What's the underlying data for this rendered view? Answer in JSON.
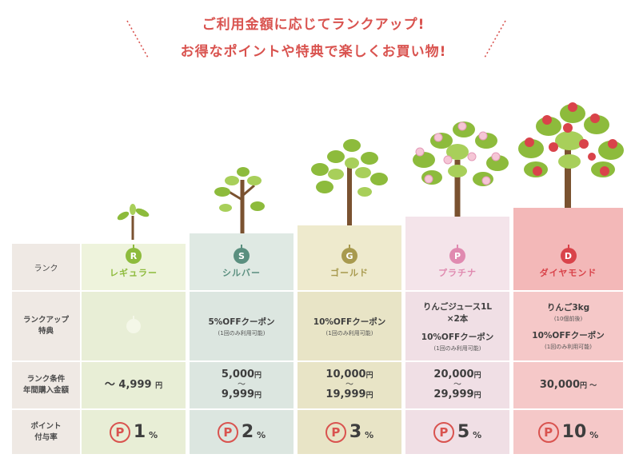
{
  "headline": {
    "line1": "ご利用金額に応じてランクアップ!",
    "line2": "お得なポイントや特典で楽しくお買い物!"
  },
  "row_headers": {
    "rank": "ランク",
    "perks_line1": "ランクアップ",
    "perks_line2": "特典",
    "condition_line1": "ランク条件",
    "condition_line2": "年間購入金額",
    "rate_line1": "ポイント",
    "rate_line2": "付与率"
  },
  "point_symbol": "P",
  "yen": "円",
  "tilde": "〜",
  "ranks": {
    "regular": {
      "letter": "R",
      "name": "レギュラー",
      "amount_single": "〜 4,999",
      "rate": "1",
      "pct": "%",
      "color": "#8dbb3c",
      "bg_head": "#eef3dc",
      "bg_cell": "#e8eed6"
    },
    "silver": {
      "letter": "S",
      "name": "シルバー",
      "perk": "5%OFFクーポン",
      "perk_note": "(1回のみ利用可能)",
      "amount_from": "5,000",
      "amount_to": "9,999",
      "rate": "2",
      "pct": "%",
      "color": "#5a8f7f",
      "bg_head": "#dfe9e3",
      "bg_cell": "#dce6e0"
    },
    "gold": {
      "letter": "G",
      "name": "ゴールド",
      "perk": "10%OFFクーポン",
      "perk_note": "(1回のみ利用可能)",
      "amount_from": "10,000",
      "amount_to": "19,999",
      "rate": "3",
      "pct": "%",
      "color": "#a89a4e",
      "bg_head": "#eeeacd",
      "bg_cell": "#e8e4c6"
    },
    "platinum": {
      "letter": "P",
      "name": "プラチナ",
      "perk_a": "りんごジュース1L",
      "perk_a2": "×2本",
      "perk_b": "10%OFFクーポン",
      "perk_b_note": "(1回のみ利用可能)",
      "amount_from": "20,000",
      "amount_to": "29,999",
      "rate": "5",
      "pct": "%",
      "color": "#e08ab0",
      "bg_head": "#f4e4ea",
      "bg_cell": "#f0dfe5"
    },
    "diamond": {
      "letter": "D",
      "name": "ダイヤモンド",
      "perk_a": "りんご3kg",
      "perk_a_note": "(10個前後)",
      "perk_b": "10%OFFクーポン",
      "perk_b_note": "(1回のみ利用可能)",
      "amount_single": "30,000",
      "amount_suffix": "円 〜",
      "rate": "10",
      "pct": "%",
      "color": "#d9434a",
      "bg_head": "#f3b8b8",
      "bg_cell": "#f5c8c8"
    }
  }
}
